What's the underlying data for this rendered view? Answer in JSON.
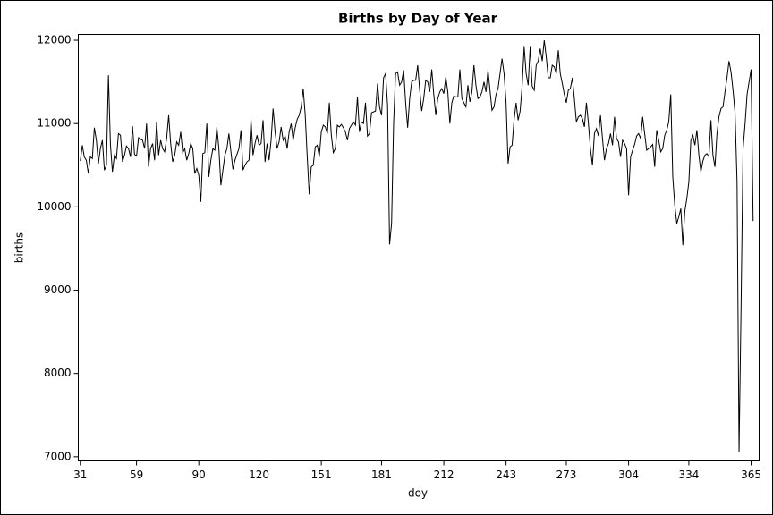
{
  "chart_data": {
    "type": "line",
    "title": "Births by Day of Year",
    "xlabel": "doy",
    "ylabel": "births",
    "color": "#000000",
    "x": [
      31,
      32,
      33,
      34,
      35,
      36,
      37,
      38,
      39,
      40,
      41,
      42,
      43,
      44,
      45,
      46,
      47,
      48,
      49,
      50,
      51,
      52,
      53,
      54,
      55,
      56,
      57,
      58,
      59,
      60,
      61,
      62,
      63,
      64,
      65,
      66,
      67,
      68,
      69,
      70,
      71,
      72,
      73,
      74,
      75,
      76,
      77,
      78,
      79,
      80,
      81,
      82,
      83,
      84,
      85,
      86,
      87,
      88,
      89,
      90,
      91,
      92,
      93,
      94,
      95,
      96,
      97,
      98,
      99,
      100,
      101,
      102,
      103,
      104,
      105,
      106,
      107,
      108,
      109,
      110,
      111,
      112,
      113,
      114,
      115,
      116,
      117,
      118,
      119,
      120,
      121,
      122,
      123,
      124,
      125,
      126,
      127,
      128,
      129,
      130,
      131,
      132,
      133,
      134,
      135,
      136,
      137,
      138,
      139,
      140,
      141,
      142,
      143,
      144,
      145,
      146,
      147,
      148,
      149,
      150,
      151,
      152,
      153,
      154,
      155,
      156,
      157,
      158,
      159,
      160,
      161,
      162,
      163,
      164,
      165,
      166,
      167,
      168,
      169,
      170,
      171,
      172,
      173,
      174,
      175,
      176,
      177,
      178,
      179,
      180,
      181,
      182,
      183,
      184,
      185,
      186,
      187,
      188,
      189,
      190,
      191,
      192,
      193,
      194,
      195,
      196,
      197,
      198,
      199,
      200,
      201,
      202,
      203,
      204,
      205,
      206,
      207,
      208,
      209,
      210,
      211,
      212,
      213,
      214,
      215,
      216,
      217,
      218,
      219,
      220,
      221,
      222,
      223,
      224,
      225,
      226,
      227,
      228,
      229,
      230,
      231,
      232,
      233,
      234,
      235,
      236,
      237,
      238,
      239,
      240,
      241,
      242,
      243,
      244,
      245,
      246,
      247,
      248,
      249,
      250,
      251,
      252,
      253,
      254,
      255,
      256,
      257,
      258,
      259,
      260,
      261,
      262,
      263,
      264,
      265,
      266,
      267,
      268,
      269,
      270,
      271,
      272,
      273,
      274,
      275,
      276,
      277,
      278,
      279,
      280,
      281,
      282,
      283,
      284,
      285,
      286,
      287,
      288,
      289,
      290,
      291,
      292,
      293,
      294,
      295,
      296,
      297,
      298,
      299,
      300,
      301,
      302,
      303,
      304,
      305,
      306,
      307,
      308,
      309,
      310,
      311,
      312,
      313,
      314,
      315,
      316,
      317,
      318,
      319,
      320,
      321,
      322,
      323,
      324,
      325,
      326,
      327,
      328,
      329,
      330,
      331,
      332,
      333,
      334,
      335,
      336,
      337,
      338,
      339,
      340,
      341,
      342,
      343,
      344,
      345,
      346,
      347,
      348,
      349,
      350,
      351,
      352,
      353,
      354,
      355,
      356,
      357,
      358,
      359,
      360,
      361,
      362,
      363,
      364,
      365,
      366
    ],
    "values": [
      10550,
      10740,
      10600,
      10560,
      10400,
      10600,
      10580,
      10950,
      10800,
      10520,
      10700,
      10800,
      10440,
      10500,
      11580,
      10750,
      10420,
      10620,
      10580,
      10880,
      10860,
      10540,
      10620,
      10730,
      10700,
      10600,
      10970,
      10630,
      10610,
      10830,
      10810,
      10800,
      10700,
      11000,
      10480,
      10700,
      10760,
      10560,
      11020,
      10620,
      10800,
      10700,
      10660,
      10820,
      11100,
      10760,
      10540,
      10620,
      10780,
      10740,
      10900,
      10650,
      10700,
      10560,
      10640,
      10760,
      10700,
      10400,
      10460,
      10380,
      10060,
      10640,
      10650,
      11000,
      10360,
      10560,
      10700,
      10680,
      10960,
      10700,
      10260,
      10440,
      10620,
      10700,
      10880,
      10660,
      10450,
      10560,
      10630,
      10700,
      10920,
      10440,
      10500,
      10540,
      10560,
      11050,
      10620,
      10760,
      10860,
      10740,
      10760,
      11040,
      10540,
      10760,
      10560,
      10800,
      11180,
      10900,
      10700,
      10780,
      10960,
      10800,
      10850,
      10700,
      10900,
      11000,
      10800,
      10950,
      11050,
      11100,
      11200,
      11420,
      11100,
      10600,
      10150,
      10480,
      10500,
      10720,
      10740,
      10600,
      10900,
      10980,
      10960,
      10880,
      11250,
      10860,
      10650,
      10700,
      10980,
      10960,
      10990,
      10950,
      10900,
      10800,
      10940,
      10980,
      11020,
      10980,
      11320,
      10900,
      11020,
      11000,
      11250,
      10850,
      10880,
      11130,
      11140,
      11150,
      11480,
      11200,
      11100,
      11550,
      11600,
      11220,
      9550,
      9800,
      11000,
      11600,
      11620,
      11460,
      11500,
      11640,
      11250,
      10950,
      11300,
      11500,
      11520,
      11520,
      11700,
      11400,
      11150,
      11300,
      11520,
      11500,
      11380,
      11650,
      11350,
      11100,
      11300,
      11380,
      11420,
      11360,
      11560,
      11380,
      11000,
      11250,
      11330,
      11320,
      11320,
      11650,
      11300,
      11250,
      11200,
      11460,
      11260,
      11380,
      11700,
      11460,
      11300,
      11320,
      11380,
      11500,
      11380,
      11640,
      11400,
      11160,
      11200,
      11350,
      11420,
      11600,
      11780,
      11600,
      11250,
      10520,
      10720,
      10740,
      11050,
      11250,
      11040,
      11150,
      11450,
      11920,
      11600,
      11460,
      11920,
      11450,
      11400,
      11700,
      11750,
      11900,
      11750,
      12000,
      11800,
      11550,
      11550,
      11700,
      11680,
      11600,
      11880,
      11600,
      11480,
      11350,
      11250,
      11400,
      11420,
      11550,
      11300,
      11020,
      11080,
      11100,
      11060,
      10960,
      11250,
      11000,
      10700,
      10500,
      10880,
      10940,
      10850,
      11100,
      10820,
      10560,
      10700,
      10760,
      10880,
      10740,
      11080,
      10820,
      10780,
      10600,
      10800,
      10760,
      10700,
      10140,
      10600,
      10680,
      10750,
      10850,
      10880,
      10820,
      11080,
      10880,
      10680,
      10700,
      10720,
      10750,
      10480,
      10920,
      10800,
      10660,
      10700,
      10860,
      10920,
      11020,
      11350,
      10360,
      10020,
      9800,
      9880,
      9980,
      9540,
      9950,
      10100,
      10300,
      10800,
      10860,
      10740,
      10920,
      10620,
      10420,
      10550,
      10620,
      10640,
      10600,
      11040,
      10620,
      10480,
      10880,
      11080,
      11180,
      11200,
      11380,
      11550,
      11750,
      11620,
      11400,
      11130,
      10300,
      7060,
      8800,
      10700,
      11000,
      11350,
      11500,
      11650,
      9830
    ],
    "xlim": [
      30,
      369
    ],
    "xticks": [
      31,
      59,
      90,
      120,
      151,
      181,
      212,
      243,
      273,
      304,
      334,
      365
    ],
    "ylim": [
      6950,
      12070
    ],
    "yticks": [
      7000,
      8000,
      9000,
      10000,
      11000,
      12000
    ]
  }
}
